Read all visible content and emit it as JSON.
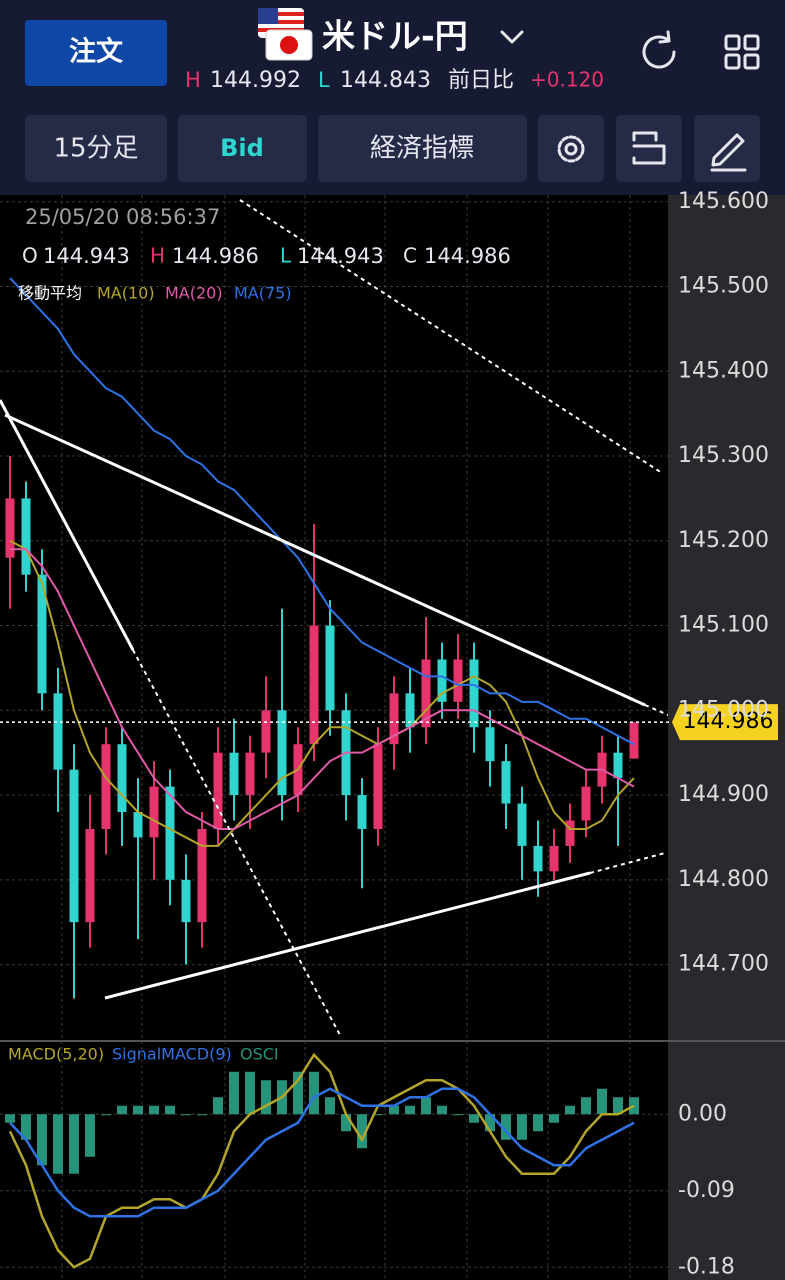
{
  "header": {
    "order_button": "注文",
    "pair": "米ドル-円",
    "high_label": "H",
    "high": "144.992",
    "low_label": "L",
    "low": "144.843",
    "change_label": "前日比",
    "change": "+0.120"
  },
  "toolbar": [
    "15分足",
    "Bid",
    "経済指標"
  ],
  "chart_data": [
    {
      "type": "candlestick",
      "datetime": "25/05/20 08:56:37",
      "ohlc_info": [
        {
          "label": "O",
          "value": 144.943
        },
        {
          "label": "H",
          "value": 144.986
        },
        {
          "label": "L",
          "value": 144.943
        },
        {
          "label": "C",
          "value": 144.986
        }
      ],
      "legend_title": "移動平均",
      "up_color": "#e8336d",
      "down_color": "#2fd6d0",
      "last_price": 144.986,
      "candles": {
        "open": [
          145.18,
          145.25,
          145.16,
          145.02,
          144.93,
          144.75,
          144.86,
          144.96,
          144.88,
          144.85,
          144.91,
          144.8,
          144.75,
          144.86,
          144.95,
          144.9,
          144.95,
          145.0,
          144.9,
          144.96,
          145.1,
          145.0,
          144.9,
          144.86,
          144.96,
          145.02,
          144.98,
          145.06,
          145.01,
          145.06,
          144.98,
          144.94,
          144.89,
          144.84,
          144.81,
          144.84,
          144.87,
          144.91,
          144.95,
          144.943
        ],
        "high": [
          145.3,
          145.27,
          145.19,
          145.05,
          144.96,
          144.9,
          144.98,
          144.98,
          144.92,
          144.94,
          144.93,
          144.83,
          144.88,
          144.98,
          144.99,
          144.97,
          145.04,
          145.12,
          144.98,
          145.22,
          145.13,
          145.02,
          144.92,
          144.98,
          145.04,
          145.05,
          145.11,
          145.08,
          145.09,
          145.08,
          145.0,
          144.96,
          144.91,
          144.87,
          144.86,
          144.89,
          144.93,
          144.97,
          144.97,
          144.986
        ],
        "low": [
          145.12,
          145.14,
          145.0,
          144.88,
          144.66,
          144.72,
          144.83,
          144.84,
          144.73,
          144.8,
          144.77,
          144.7,
          144.72,
          144.84,
          144.87,
          144.86,
          144.92,
          144.87,
          144.88,
          144.94,
          144.97,
          144.87,
          144.79,
          144.84,
          144.93,
          144.95,
          144.96,
          144.99,
          144.99,
          144.95,
          144.91,
          144.86,
          144.8,
          144.78,
          144.8,
          144.82,
          144.85,
          144.89,
          144.84,
          144.943
        ],
        "close": [
          145.25,
          145.16,
          145.02,
          144.93,
          144.75,
          144.86,
          144.96,
          144.88,
          144.85,
          144.91,
          144.8,
          144.75,
          144.86,
          144.95,
          144.9,
          144.95,
          145.0,
          144.9,
          144.96,
          145.1,
          145.0,
          144.9,
          144.86,
          144.96,
          145.02,
          144.98,
          145.06,
          145.01,
          145.06,
          144.98,
          144.94,
          144.89,
          144.84,
          144.81,
          144.84,
          144.87,
          144.91,
          144.95,
          144.92,
          144.986
        ]
      },
      "moving_averages": [
        {
          "name": "MA(10)",
          "color": "#b3a52a",
          "values": [
            145.2,
            145.19,
            145.15,
            145.08,
            145.0,
            144.95,
            144.92,
            144.9,
            144.88,
            144.87,
            144.86,
            144.85,
            144.84,
            144.84,
            144.86,
            144.88,
            144.9,
            144.92,
            144.93,
            144.96,
            144.98,
            144.98,
            144.97,
            144.96,
            144.97,
            144.98,
            145.0,
            145.02,
            145.03,
            145.04,
            145.03,
            145.01,
            144.97,
            144.92,
            144.88,
            144.86,
            144.86,
            144.87,
            144.9,
            144.92
          ]
        },
        {
          "name": "MA(20)",
          "color": "#e05aa8",
          "values": [
            145.19,
            145.19,
            145.17,
            145.14,
            145.1,
            145.06,
            145.02,
            144.98,
            144.95,
            144.92,
            144.9,
            144.88,
            144.87,
            144.86,
            144.86,
            144.87,
            144.88,
            144.89,
            144.9,
            144.92,
            144.94,
            144.95,
            144.95,
            144.96,
            144.97,
            144.98,
            144.99,
            145.0,
            145.0,
            145.0,
            144.99,
            144.98,
            144.97,
            144.96,
            144.95,
            144.94,
            144.93,
            144.93,
            144.92,
            144.91
          ]
        },
        {
          "name": "MA(75)",
          "color": "#2f72e6",
          "values": [
            145.51,
            145.49,
            145.47,
            145.45,
            145.42,
            145.4,
            145.38,
            145.37,
            145.35,
            145.33,
            145.32,
            145.3,
            145.29,
            145.27,
            145.26,
            145.24,
            145.22,
            145.2,
            145.18,
            145.15,
            145.12,
            145.1,
            145.08,
            145.07,
            145.06,
            145.05,
            145.04,
            145.04,
            145.03,
            145.03,
            145.02,
            145.02,
            145.01,
            145.01,
            145.0,
            144.99,
            144.99,
            144.98,
            144.97,
            144.96
          ]
        }
      ],
      "ylim": [
        144.611,
        145.608
      ],
      "yticks": [
        {
          "value": 145.6,
          "label": "145.600"
        },
        {
          "value": 145.5,
          "label": "145.500"
        },
        {
          "value": 145.4,
          "label": "145.400"
        },
        {
          "value": 145.3,
          "label": "145.300"
        },
        {
          "value": 145.2,
          "label": "145.200"
        },
        {
          "value": 145.1,
          "label": "145.100"
        },
        {
          "value": 145.0,
          "label": "145.000"
        },
        {
          "value": 144.9,
          "label": "144.900"
        },
        {
          "value": 144.8,
          "label": "144.800"
        },
        {
          "value": 144.7,
          "label": "144.700"
        }
      ],
      "grid": true
    },
    {
      "type": "macd",
      "series": [
        {
          "name": "MACD(5,20)",
          "color": "#b3a52a",
          "kind": "line",
          "values": [
            -0.02,
            -0.06,
            -0.12,
            -0.16,
            -0.18,
            -0.17,
            -0.12,
            -0.11,
            -0.11,
            -0.1,
            -0.1,
            -0.11,
            -0.1,
            -0.07,
            -0.02,
            0.0,
            0.01,
            0.02,
            0.04,
            0.07,
            0.05,
            0.0,
            -0.03,
            0.01,
            0.02,
            0.03,
            0.04,
            0.04,
            0.03,
            0.01,
            -0.02,
            -0.05,
            -0.07,
            -0.07,
            -0.07,
            -0.05,
            -0.02,
            0.0,
            0.0,
            0.01
          ]
        },
        {
          "name": "SignalMACD(9)",
          "color": "#2f72e6",
          "kind": "line",
          "values": [
            -0.01,
            -0.03,
            -0.06,
            -0.09,
            -0.11,
            -0.12,
            -0.12,
            -0.12,
            -0.12,
            -0.11,
            -0.11,
            -0.11,
            -0.1,
            -0.09,
            -0.07,
            -0.05,
            -0.03,
            -0.02,
            -0.01,
            0.02,
            0.03,
            0.02,
            0.01,
            0.01,
            0.01,
            0.02,
            0.02,
            0.03,
            0.03,
            0.02,
            0.0,
            -0.02,
            -0.04,
            -0.05,
            -0.06,
            -0.06,
            -0.04,
            -0.03,
            -0.02,
            -0.01
          ]
        },
        {
          "name": "OSCI",
          "color": "#27937a",
          "kind": "bar",
          "values": [
            -0.01,
            -0.03,
            -0.06,
            -0.07,
            -0.07,
            -0.05,
            0.0,
            0.01,
            0.01,
            0.01,
            0.01,
            0.0,
            0.0,
            0.02,
            0.05,
            0.05,
            0.04,
            0.04,
            0.05,
            0.05,
            0.02,
            -0.02,
            -0.04,
            0.0,
            0.01,
            0.01,
            0.02,
            0.01,
            0.0,
            -0.01,
            -0.02,
            -0.03,
            -0.03,
            -0.02,
            -0.01,
            0.01,
            0.02,
            0.03,
            0.02,
            0.02
          ]
        }
      ],
      "ylim": [
        -0.195,
        0.085
      ],
      "yticks": [
        {
          "value": 0,
          "label": "0.00"
        },
        {
          "value": -0.09,
          "label": "-0.09"
        },
        {
          "value": -0.18,
          "label": "-0.18"
        }
      ],
      "grid": true
    }
  ]
}
